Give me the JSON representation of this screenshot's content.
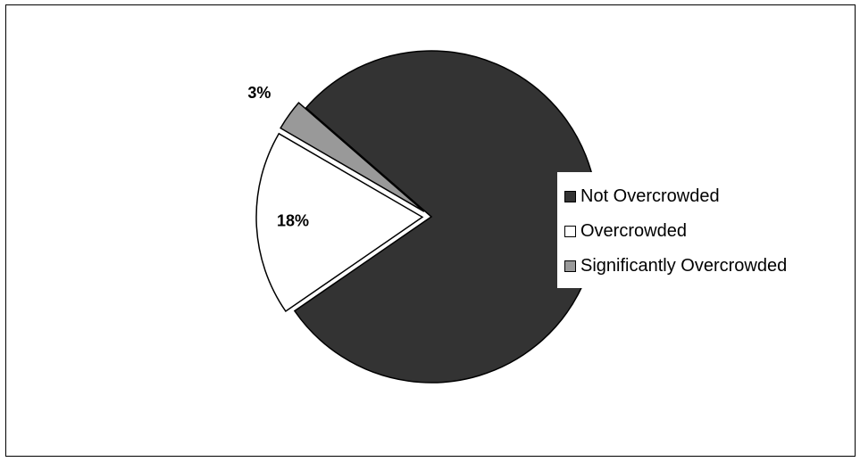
{
  "chart_data": {
    "type": "pie",
    "title": "",
    "slices": [
      {
        "label": "Not Overcrowded",
        "value": 79,
        "color": "#333333",
        "data_label": "",
        "exploded": false
      },
      {
        "label": "Overcrowded",
        "value": 18,
        "color": "#ffffff",
        "data_label": "18%",
        "exploded": true
      },
      {
        "label": "Significantly Overcrowded",
        "value": 3,
        "color": "#999999",
        "data_label": "3%",
        "exploded": true
      }
    ],
    "legend_position": "right",
    "grid": false
  }
}
